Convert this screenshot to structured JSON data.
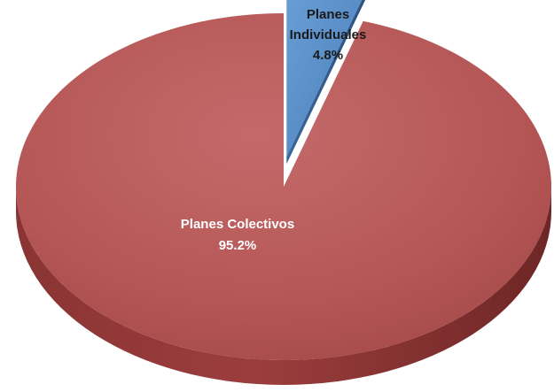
{
  "chart_data": {
    "type": "pie",
    "title": "",
    "series": [
      {
        "values": [
          {
            "label_line1": "Planes",
            "label_line2": "Individuales",
            "percent_label": "4.8%",
            "value": 4.8
          },
          {
            "label_line1": "Planes Colectivos",
            "percent_label": "95.2%",
            "value": 95.2
          }
        ]
      }
    ],
    "exploded_slice": "Planes Individuales",
    "style": "3d",
    "colors": {
      "Planes Individuales": "#5b8fc8",
      "Planes Colectivos": "#b85a5a"
    }
  }
}
